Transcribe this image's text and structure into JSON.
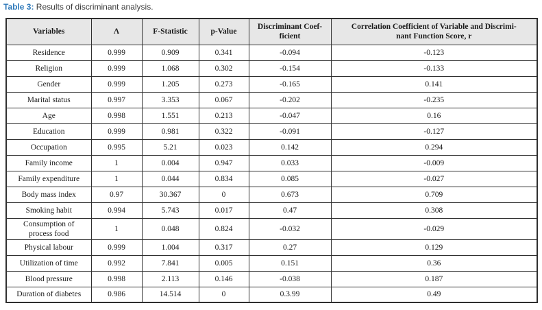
{
  "title": {
    "label": "Table 3:",
    "text": " Results of discriminant analysis."
  },
  "colors": {
    "title_blue": "#2e79ba",
    "header_bg": "#e7e7e7",
    "border": "#2f2f2f",
    "text": "#1a1a1a"
  },
  "chart_data": {
    "type": "table",
    "title": "Table 3: Results of discriminant analysis.",
    "columns": [
      "Variables",
      "Λ",
      "F-Statistic",
      "p-Value",
      "Discriminant Coef-\nficient",
      "Correlation Coefficient of Variable and Discrimi-\nnant Function Score, r"
    ],
    "rows": [
      [
        "Residence",
        "0.999",
        "0.909",
        "0.341",
        "-0.094",
        "-0.123"
      ],
      [
        "Religion",
        "0.999",
        "1.068",
        "0.302",
        "-0.154",
        "-0.133"
      ],
      [
        "Gender",
        "0.999",
        "1.205",
        "0.273",
        "-0.165",
        "0.141"
      ],
      [
        "Marital status",
        "0.997",
        "3.353",
        "0.067",
        "-0.202",
        "-0.235"
      ],
      [
        "Age",
        "0.998",
        "1.551",
        "0.213",
        "-0.047",
        "0.16"
      ],
      [
        "Education",
        "0.999",
        "0.981",
        "0.322",
        "-0.091",
        "-0.127"
      ],
      [
        "Occupation",
        "0.995",
        "5.21",
        "0.023",
        "0.142",
        "0.294"
      ],
      [
        "Family income",
        "1",
        "0.004",
        "0.947",
        "0.033",
        "-0.009"
      ],
      [
        "Family expenditure",
        "1",
        "0.044",
        "0.834",
        "0.085",
        "-0.027"
      ],
      [
        "Body mass index",
        "0.97",
        "30.367",
        "0",
        "0.673",
        "0.709"
      ],
      [
        "Smoking habit",
        "0.994",
        "5.743",
        "0.017",
        "0.47",
        "0.308"
      ],
      [
        "Consumption of\nprocess food",
        "1",
        "0.048",
        "0.824",
        "-0.032",
        "-0.029"
      ],
      [
        "Physical labour",
        "0.999",
        "1.004",
        "0.317",
        "0.27",
        "0.129"
      ],
      [
        "Utilization of time",
        "0.992",
        "7.841",
        "0.005",
        "0.151",
        "0.36"
      ],
      [
        "Blood pressure",
        "0.998",
        "2.113",
        "0.146",
        "-0.038",
        "0.187"
      ],
      [
        "Duration of diabetes",
        "0.986",
        "14.514",
        "0",
        "0.3.99",
        "0.49"
      ]
    ]
  }
}
